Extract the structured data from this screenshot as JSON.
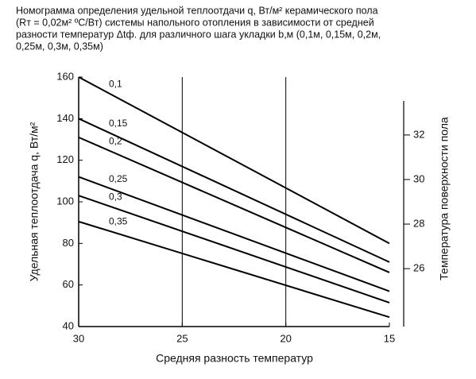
{
  "chart_data": {
    "type": "line",
    "title_lines": [
      "Номограмма определения удельной теплоотдачи  q, Вт/м² керамического пола",
      "(Rт = 0,02м² ºС/Вт) системы напольного отопления в зависимости от средней",
      "разности температур  Δtф. для различного шага укладки  b,м (0,1м, 0,15м, 0,2м,",
      "0,25м, 0,3м, 0,35м)"
    ],
    "x_label": "Средняя разность температур",
    "y_label": "Удельная теплоотдача q, Вт/м²",
    "y2_label": "Температура поверхности пола",
    "x": [
      30,
      15
    ],
    "xlim": [
      30,
      15
    ],
    "xticks": [
      30,
      25,
      20,
      15
    ],
    "ylim": [
      40,
      160
    ],
    "yticks": [
      40,
      60,
      80,
      100,
      120,
      140,
      160
    ],
    "y2lim": [
      23.4,
      34.6
    ],
    "y2ticks": [
      26,
      28,
      30,
      32
    ],
    "grid": true,
    "series": [
      {
        "name": "0,1",
        "color": "#000000",
        "values": [
          160,
          80
        ]
      },
      {
        "name": "0,15",
        "color": "#000000",
        "values": [
          140,
          71
        ]
      },
      {
        "name": "0,2",
        "color": "#000000",
        "values": [
          131,
          66
        ]
      },
      {
        "name": "0,25",
        "color": "#000000",
        "values": [
          112,
          57
        ]
      },
      {
        "name": "0,3",
        "color": "#000000",
        "values": [
          103,
          51.5
        ]
      },
      {
        "name": "0,35",
        "color": "#000000",
        "values": [
          90.5,
          44.5
        ]
      }
    ]
  }
}
